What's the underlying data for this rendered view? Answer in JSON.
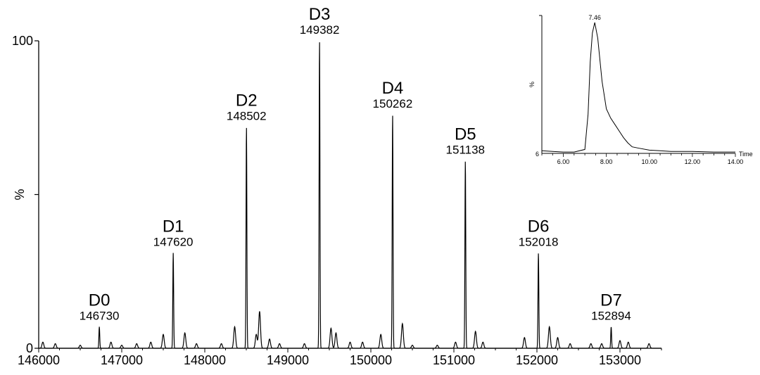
{
  "chart_data": [
    {
      "type": "line",
      "ylabel": "%",
      "xlabel": "",
      "xlim": [
        146000,
        153500
      ],
      "ylim": [
        0,
        100
      ],
      "xticks": [
        "146000",
        "147000",
        "148000",
        "149000",
        "150000",
        "151000",
        "152000",
        "153000"
      ],
      "yticks": [
        "0",
        "100"
      ],
      "grid": false,
      "peaks": [
        {
          "label": "D0",
          "mass": "146730",
          "x": 146730,
          "y": 7
        },
        {
          "label": "D1",
          "mass": "147620",
          "x": 147620,
          "y": 31
        },
        {
          "label": "D2",
          "mass": "148502",
          "x": 148502,
          "y": 72
        },
        {
          "label": "D3",
          "mass": "149382",
          "x": 149382,
          "y": 100
        },
        {
          "label": "D4",
          "mass": "150262",
          "x": 150262,
          "y": 76
        },
        {
          "label": "D5",
          "mass": "151138",
          "x": 151138,
          "y": 61
        },
        {
          "label": "D6",
          "mass": "152018",
          "x": 152018,
          "y": 31
        },
        {
          "label": "D7",
          "mass": "152894",
          "x": 152894,
          "y": 7
        }
      ],
      "minor_peaks": [
        {
          "x": 146050,
          "y": 2
        },
        {
          "x": 146200,
          "y": 1.5
        },
        {
          "x": 146500,
          "y": 1
        },
        {
          "x": 146870,
          "y": 2
        },
        {
          "x": 147000,
          "y": 1
        },
        {
          "x": 147180,
          "y": 1.5
        },
        {
          "x": 147350,
          "y": 2
        },
        {
          "x": 147500,
          "y": 4.5
        },
        {
          "x": 147760,
          "y": 5
        },
        {
          "x": 147900,
          "y": 1.5
        },
        {
          "x": 148200,
          "y": 1.5
        },
        {
          "x": 148360,
          "y": 7
        },
        {
          "x": 148620,
          "y": 4.5
        },
        {
          "x": 148660,
          "y": 12
        },
        {
          "x": 148780,
          "y": 3
        },
        {
          "x": 148900,
          "y": 1.5
        },
        {
          "x": 149200,
          "y": 1.5
        },
        {
          "x": 149520,
          "y": 6.5
        },
        {
          "x": 149580,
          "y": 5
        },
        {
          "x": 149750,
          "y": 2
        },
        {
          "x": 149900,
          "y": 2
        },
        {
          "x": 150120,
          "y": 4.5
        },
        {
          "x": 150380,
          "y": 8
        },
        {
          "x": 150500,
          "y": 1
        },
        {
          "x": 150800,
          "y": 1
        },
        {
          "x": 151020,
          "y": 2
        },
        {
          "x": 151260,
          "y": 5.5
        },
        {
          "x": 151350,
          "y": 2
        },
        {
          "x": 151850,
          "y": 3.5
        },
        {
          "x": 152150,
          "y": 7
        },
        {
          "x": 152250,
          "y": 3.5
        },
        {
          "x": 152400,
          "y": 1.5
        },
        {
          "x": 152650,
          "y": 1.5
        },
        {
          "x": 152780,
          "y": 1.5
        },
        {
          "x": 153000,
          "y": 2.5
        },
        {
          "x": 153100,
          "y": 2
        },
        {
          "x": 153350,
          "y": 1.5
        }
      ]
    },
    {
      "type": "line",
      "ylabel": "%",
      "xlabel": "Time",
      "xlim": [
        5.0,
        14.0
      ],
      "ylim": [
        0,
        100
      ],
      "xticks": [
        "6.00",
        "8.00",
        "10.00",
        "12.00",
        "14.00"
      ],
      "ytick_bottom": "6",
      "peak_label": "7.46",
      "series": [
        {
          "x": [
            5.0,
            5.5,
            6.0,
            6.5,
            7.0,
            7.15,
            7.25,
            7.35,
            7.46,
            7.6,
            7.8,
            8.0,
            8.2,
            8.4,
            8.6,
            8.8,
            9.0,
            9.2,
            9.5,
            10.0,
            10.5,
            11.0,
            12.0,
            13.0,
            14.0
          ],
          "y": [
            2,
            1.5,
            1,
            1,
            3,
            30,
            70,
            92,
            100,
            88,
            55,
            34,
            27,
            22,
            17,
            12,
            8,
            5,
            4,
            2.5,
            2,
            1.5,
            1.5,
            1,
            1
          ]
        }
      ]
    }
  ]
}
